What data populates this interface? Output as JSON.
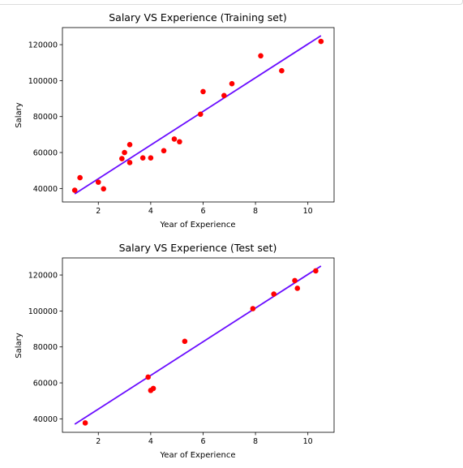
{
  "chart_data": [
    {
      "type": "scatter",
      "title": "Salary VS Experience (Training set)",
      "xlabel": "Year of Experience",
      "ylabel": "Salary",
      "xlim": [
        0.63,
        11.0
      ],
      "ylim": [
        32500,
        129500
      ],
      "xticks": [
        2,
        4,
        6,
        8,
        10
      ],
      "yticks": [
        40000,
        60000,
        80000,
        100000,
        120000
      ],
      "grid": false,
      "series": [
        {
          "kind": "points",
          "color": "#ff0000",
          "x": [
            1.1,
            1.3,
            2.0,
            2.2,
            2.9,
            3.0,
            3.2,
            3.2,
            3.7,
            4.0,
            4.5,
            4.9,
            5.1,
            5.9,
            6.0,
            6.8,
            7.1,
            8.2,
            9.0,
            10.5
          ],
          "y": [
            39000,
            46000,
            43500,
            39800,
            56600,
            60000,
            54400,
            64400,
            57000,
            57000,
            61000,
            67500,
            66000,
            81300,
            93900,
            91700,
            98300,
            113800,
            105500,
            121800
          ]
        },
        {
          "kind": "line",
          "color": "#6a0dff",
          "x": [
            1.1,
            10.5
          ],
          "y": [
            37000,
            125000
          ]
        }
      ]
    },
    {
      "type": "scatter",
      "title": "Salary VS Experience (Test set)",
      "xlabel": "Year of Experience",
      "ylabel": "Salary",
      "xlim": [
        0.63,
        11.0
      ],
      "ylim": [
        32500,
        129500
      ],
      "xticks": [
        2,
        4,
        6,
        8,
        10
      ],
      "yticks": [
        40000,
        60000,
        80000,
        100000,
        120000
      ],
      "grid": false,
      "series": [
        {
          "kind": "points",
          "color": "#ff0000",
          "x": [
            1.5,
            3.9,
            4.0,
            4.1,
            5.3,
            7.9,
            8.7,
            9.5,
            9.6,
            10.3
          ],
          "y": [
            37700,
            63200,
            55800,
            56900,
            83100,
            101300,
            109400,
            116900,
            112600,
            122300
          ]
        },
        {
          "kind": "line",
          "color": "#6a0dff",
          "x": [
            1.1,
            10.5
          ],
          "y": [
            37000,
            125000
          ]
        }
      ]
    }
  ]
}
